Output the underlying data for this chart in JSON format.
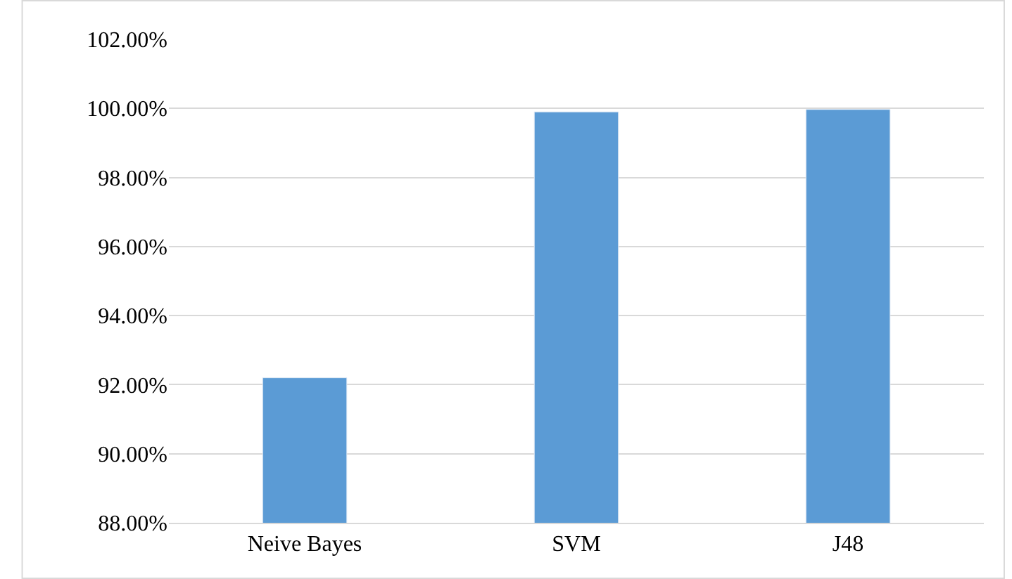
{
  "chart_data": {
    "type": "bar",
    "categories": [
      "Neive Bayes",
      "SVM",
      "J48"
    ],
    "values": [
      92.2,
      99.9,
      99.97
    ],
    "color": "#5b9bd5",
    "ylim": [
      88,
      102
    ],
    "yticks": [
      {
        "value": 88,
        "label": "88.00%"
      },
      {
        "value": 90,
        "label": "90.00%"
      },
      {
        "value": 92,
        "label": "92.00%"
      },
      {
        "value": 94,
        "label": "94.00%"
      },
      {
        "value": 96,
        "label": "96.00%"
      },
      {
        "value": 98,
        "label": "98.00%"
      },
      {
        "value": 100,
        "label": "100.00%"
      },
      {
        "value": 102,
        "label": "102.00%"
      }
    ],
    "grid": "y"
  }
}
